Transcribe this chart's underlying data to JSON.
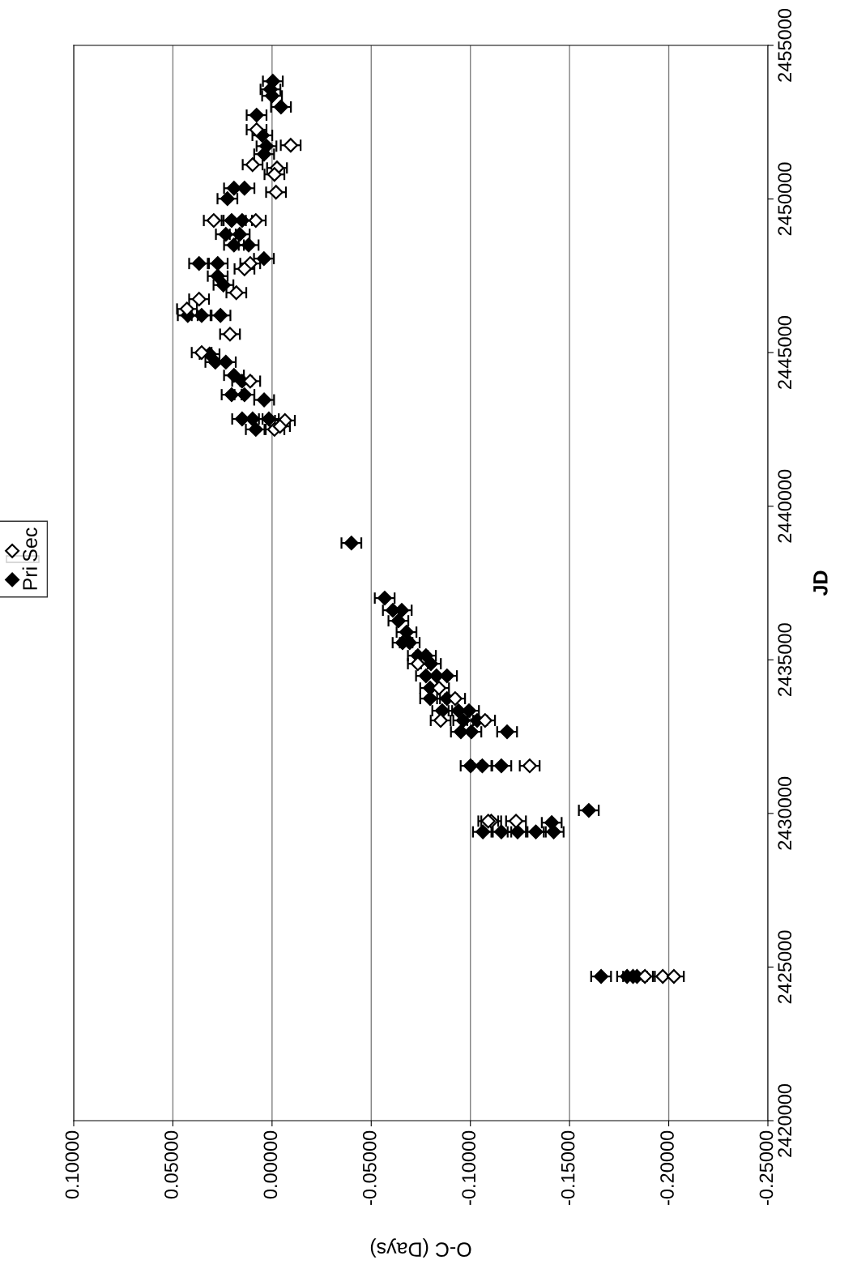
{
  "chart_data": {
    "type": "scatter",
    "xlabel": "O-C (Days)",
    "ylabel": "JD",
    "xlim": [
      0.1,
      -0.25
    ],
    "xticks": [
      {
        "value": 0.1,
        "label": "0.10000"
      },
      {
        "value": 0.05,
        "label": "0.05000"
      },
      {
        "value": 0,
        "label": "0.00000"
      },
      {
        "value": -0.05,
        "label": "-0.05000"
      },
      {
        "value": -0.1,
        "label": "-0.10000"
      },
      {
        "value": -0.15,
        "label": "-0.15000"
      },
      {
        "value": -0.2,
        "label": "-0.20000"
      },
      {
        "value": -0.25,
        "label": "-0.25000"
      }
    ],
    "ylim": [
      2420000,
      2455000
    ],
    "yticks": [
      2420000,
      2425000,
      2430000,
      2435000,
      2440000,
      2445000,
      2450000,
      2455000
    ],
    "grid": "x",
    "legend": "left",
    "marker": "diamond",
    "series": [
      {
        "name": "Pri",
        "color": "#000000",
        "x": [
          -0.1659,
          -0.179,
          -0.182,
          -0.184,
          -0.1063,
          -0.1156,
          -0.1238,
          -0.133,
          -0.142,
          -0.141,
          -0.1597,
          -0.1001,
          -0.106,
          -0.1156,
          -0.04,
          -0.0568,
          -0.0609,
          -0.0654,
          -0.0637,
          -0.0678,
          -0.0658,
          -0.0694,
          -0.0735,
          -0.0776,
          -0.0801,
          -0.0776,
          -0.0829,
          -0.0882,
          -0.0797,
          -0.0797,
          -0.0882,
          -0.0858,
          -0.094,
          -0.0993,
          -0.0964,
          -0.1034,
          -0.0952,
          -0.1005,
          -0.1185,
          -0.0004,
          0.0008,
          0.0,
          0.0078,
          -0.0045,
          0.0049,
          0.004,
          0.0028,
          0.0192,
          0.0139,
          0.0225,
          0.0204,
          0.0151,
          0.0233,
          0.0163,
          0.0192,
          0.0118,
          0.0368,
          0.0274,
          0.0041,
          0.0274,
          0.0245,
          0.0425,
          0.0355,
          0.026,
          0.0315,
          0.0286,
          0.0233,
          0.0192,
          0.0151,
          0.0204,
          0.0139,
          0.004,
          0.0151,
          0.0098,
          0.0016,
          0.0082
        ],
        "values": [
          2424694,
          2424694,
          2424694,
          2424694,
          2429400,
          2429400,
          2429400,
          2429400,
          2429400,
          2429700,
          2430100,
          2431550,
          2431550,
          2431550,
          2438802,
          2437009,
          2436613,
          2436613,
          2436270,
          2435901,
          2435558,
          2435558,
          2435136,
          2435136,
          2434873,
          2434477,
          2434477,
          2434477,
          2434082,
          2433739,
          2433739,
          2433343,
          2433343,
          2433343,
          2433027,
          2433027,
          2432657,
          2432657,
          2432657,
          2453832,
          2453568,
          2453357,
          2452730,
          2452995,
          2452071,
          2451460,
          2451720,
          2450350,
          2450350,
          2450010,
          2449300,
          2449300,
          2448850,
          2448850,
          2448500,
          2448500,
          2447900,
          2447900,
          2448060,
          2447490,
          2447200,
          2446210,
          2446210,
          2446210,
          2444950,
          2444690,
          2444690,
          2444260,
          2444070,
          2443630,
          2443630,
          2443460,
          2442840,
          2442840,
          2442840,
          2442500
        ],
        "xerrors": [
          0.005,
          0.005,
          0.005,
          0.005,
          0.005,
          0.005,
          0.005,
          0.005,
          0.005,
          0.005,
          0.005,
          0.005,
          0.005,
          0.005,
          0.005,
          0.005,
          0.005,
          0.005,
          0.005,
          0.005,
          0.005,
          0.005,
          0.005,
          0.005,
          0.005,
          0.005,
          0.005,
          0.005,
          0.005,
          0.005,
          0.005,
          0.005,
          0.005,
          0.005,
          0.005,
          0.005,
          0.005,
          0.005,
          0.005,
          0.005,
          0.005,
          0.005,
          0.005,
          0.005,
          0.005,
          0.005,
          0.005,
          0.005,
          0.005,
          0.005,
          0.005,
          0.005,
          0.005,
          0.005,
          0.005,
          0.005,
          0.005,
          0.005,
          0.005,
          0.005,
          0.005,
          0.005,
          0.005,
          0.005,
          0.005,
          0.005,
          0.005,
          0.005,
          0.005,
          0.005,
          0.005,
          0.005,
          0.005,
          0.005,
          0.005,
          0.005
        ]
      },
      {
        "name": "Sec",
        "color": "#000000",
        "x": [
          -0.197,
          -0.2026,
          -0.188,
          -0.1105,
          -0.123,
          -0.109,
          -0.1299,
          -0.0735,
          -0.0842,
          -0.0923,
          -0.085,
          -0.1074,
          0.0078,
          -0.0094,
          0.0098,
          -0.0025,
          -0.0012,
          -0.002,
          0.0294,
          0.0082,
          0.011,
          0.0139,
          0.018,
          0.0368,
          0.0429,
          0.0212,
          0.0355,
          0.011,
          -0.0065,
          -0.0012,
          -0.004
        ],
        "values": [
          2424694,
          2424694,
          2424694,
          2429750,
          2429750,
          2429750,
          2431550,
          2434873,
          2434082,
          2433739,
          2433027,
          2433027,
          2452255,
          2451749,
          2451117,
          2451011,
          2450800,
          2450220,
          2449300,
          2449300,
          2447900,
          2447725,
          2446950,
          2446740,
          2446420,
          2445600,
          2445000,
          2444070,
          2442790,
          2442500,
          2442600
        ],
        "xerrors": [
          0.005,
          0.005,
          0.005,
          0.005,
          0.005,
          0.005,
          0.005,
          0.005,
          0.005,
          0.005,
          0.005,
          0.005,
          0.005,
          0.005,
          0.005,
          0.005,
          0.005,
          0.005,
          0.005,
          0.005,
          0.005,
          0.005,
          0.005,
          0.005,
          0.005,
          0.005,
          0.005,
          0.005,
          0.005,
          0.005,
          0.005
        ]
      }
    ]
  }
}
